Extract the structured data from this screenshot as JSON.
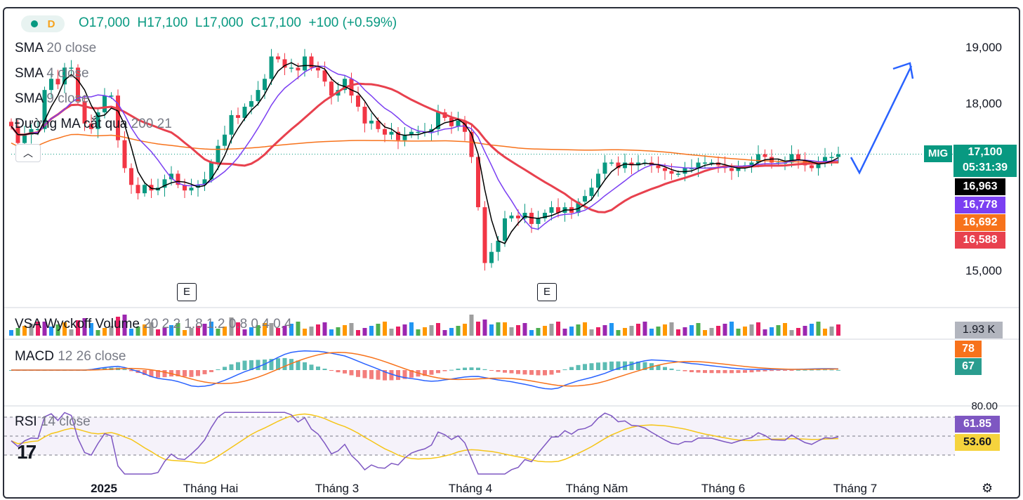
{
  "header": {
    "timeframe": "D",
    "open": "O17,000",
    "high": "H17,100",
    "low": "L17,000",
    "close": "C17,100",
    "change": "+100 (+0.59%)"
  },
  "indicators": {
    "sma20": {
      "name": "SMA",
      "params": "20 close"
    },
    "sma4": {
      "name": "SMA",
      "params": "4 close"
    },
    "sma9": {
      "name": "SMA",
      "params": "9 close"
    },
    "ma_cross": {
      "name": "Đường MA cắt qua",
      "params": "200 21"
    },
    "vsa": {
      "name": "VSA Wyckoff Volume",
      "params": "20 2.2 1.8 1.2 0.8 0.4 0.4"
    },
    "macd": {
      "name": "MACD",
      "params": "12 26 close"
    },
    "rsi": {
      "name": "RSI",
      "params": "14 close"
    }
  },
  "price_axis": {
    "ticks": [
      "19,000",
      "18,000",
      "15,000"
    ],
    "symbol": "MIG",
    "last_price": "17,100",
    "countdown": "05:31:39",
    "labels": [
      {
        "text": "16,963",
        "color": "#000000"
      },
      {
        "text": "16,778",
        "color": "#7b3ff2"
      },
      {
        "text": "16,692",
        "color": "#f7721b"
      },
      {
        "text": "16,588",
        "color": "#e8414e"
      }
    ]
  },
  "volume_axis": {
    "value": "1.93 K"
  },
  "macd_axis": {
    "macd": "78",
    "signal": "67"
  },
  "rsi_axis": {
    "top": "80.00",
    "rsi": "61.85",
    "ma": "53.60"
  },
  "time_axis": [
    "2025",
    "Tháng Hai",
    "Tháng 3",
    "Tháng 4",
    "Tháng Năm",
    "Tháng 6",
    "Tháng 7"
  ],
  "events": [
    "E",
    "E"
  ],
  "colors": {
    "up": "#089981",
    "down": "#f23645",
    "sma4": "#000000",
    "sma9": "#7b3ff2",
    "sma20": "#e8414e",
    "ma200": "#f7721b"
  },
  "chart_data": {
    "type": "candlestick",
    "y_ticks": [
      15000,
      18000,
      19000
    ],
    "closes": [
      17600,
      17300,
      17450,
      17550,
      17550,
      18250,
      18450,
      18350,
      18650,
      18650,
      18050,
      17650,
      17550,
      17850,
      18150,
      18150,
      17350,
      16850,
      16550,
      16400,
      16550,
      16450,
      16500,
      16650,
      16750,
      16550,
      16450,
      16500,
      16550,
      16650,
      16950,
      17250,
      17450,
      17800,
      17750,
      17950,
      18050,
      18250,
      18450,
      18850,
      18800,
      18650,
      18650,
      18600,
      18850,
      18650,
      18600,
      18400,
      18150,
      18250,
      18450,
      18150,
      17950,
      17650,
      17700,
      17550,
      17450,
      17500,
      17350,
      17450,
      17500,
      17500,
      17500,
      17550,
      17850,
      17750,
      17600,
      17700,
      17500,
      17050,
      16150,
      15150,
      15350,
      15550,
      15950,
      16000,
      15950,
      16050,
      15850,
      15950,
      16050,
      16150,
      16050,
      16150,
      16050,
      16250,
      16350,
      16500,
      16750,
      16950,
      16950,
      16850,
      16950,
      16900,
      16950,
      16950,
      16900,
      16850,
      16800,
      16750,
      16750,
      16850,
      16850,
      16950,
      16950,
      16950,
      16900,
      16850,
      16800,
      16850,
      16900,
      16950,
      17100,
      17050,
      16950,
      16950,
      16950,
      17100,
      17000,
      16900,
      16850,
      16950,
      17050,
      17050,
      17100
    ],
    "last": {
      "open": 17000,
      "high": 17100,
      "low": 17000,
      "close": 17100,
      "change": 100,
      "change_pct": 0.59
    },
    "series_last_values": {
      "SMA 4": 16963,
      "SMA 9": 16778,
      "MA 200": 16692,
      "SMA 20": 16588
    },
    "volume_last": "1.93 K",
    "macd_last": {
      "macd": 78,
      "signal": 67
    },
    "rsi_last": {
      "rsi": 61.85,
      "ma": 53.6
    },
    "x_labels": [
      "2025",
      "Tháng Hai",
      "Tháng 3",
      "Tháng 4",
      "Tháng Năm",
      "Tháng 6",
      "Tháng 7"
    ]
  }
}
